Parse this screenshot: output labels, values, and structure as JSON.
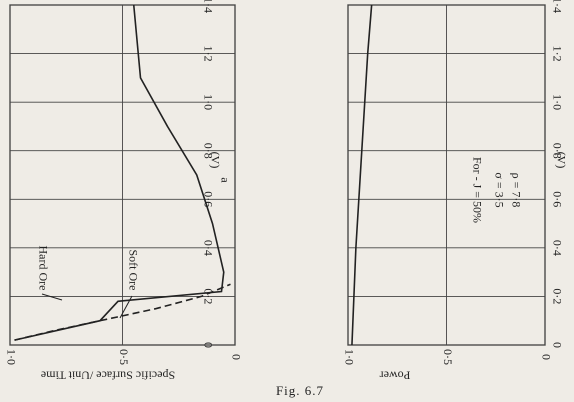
{
  "chart_data": [
    {
      "type": "line",
      "x_label": "(V)",
      "y_label": "Specific Surface /Unit Time",
      "annotations": [
        "a"
      ],
      "xlim": [
        0,
        1.4
      ],
      "xticks": [
        0,
        {
          "value": 0.2,
          "label": "0·2"
        },
        {
          "value": 0.4,
          "label": "0·4"
        },
        {
          "value": 0.6,
          "label": "0·6"
        },
        {
          "value": 0.8,
          "label": "0·8"
        },
        {
          "value": 1.0,
          "label": "1·0"
        },
        {
          "value": 1.2,
          "label": "1·2"
        },
        {
          "value": 1.4,
          "label": "1·4"
        }
      ],
      "ylim": [
        0,
        1.0
      ],
      "yticks": [
        {
          "value": 1.0,
          "label": "1·0"
        },
        {
          "value": 0.5,
          "label": "0·5"
        },
        0
      ],
      "grid": true,
      "x": [
        0.02,
        0.1,
        0.18,
        0.22,
        0.3,
        0.5,
        0.7,
        0.9,
        1.1,
        1.4
      ],
      "series": [
        {
          "name": "Hard Ore",
          "color": "#222222",
          "dash": true,
          "x": [
            0.02,
            0.06,
            0.1,
            0.15,
            0.2,
            0.25
          ],
          "values": [
            0.98,
            0.8,
            0.6,
            0.35,
            0.15,
            0.02
          ]
        },
        {
          "name": "Soft Ore",
          "color": "#222222",
          "dash": false,
          "x": [
            0.02,
            0.1,
            0.18,
            0.22,
            0.3,
            0.5,
            0.7,
            0.9,
            1.1,
            1.4
          ],
          "values": [
            0.98,
            0.6,
            0.52,
            0.06,
            0.05,
            0.1,
            0.17,
            0.3,
            0.42,
            0.45
          ]
        }
      ]
    },
    {
      "type": "line",
      "x_label": "(V)",
      "y_label": "Power",
      "annotations": [
        "For - J = 50%",
        "σ = 3·5",
        "ρ = 7·8"
      ],
      "xlim": [
        0,
        1.4
      ],
      "xticks": [
        0,
        {
          "value": 0.2,
          "label": "0·2"
        },
        {
          "value": 0.4,
          "label": "0·4"
        },
        {
          "value": 0.6,
          "label": "0·6"
        },
        {
          "value": 0.8,
          "label": "0·8"
        },
        {
          "value": 1.0,
          "label": "1·0"
        },
        {
          "value": 1.2,
          "label": "1·2"
        },
        {
          "value": 1.4,
          "label": "1·4"
        }
      ],
      "ylim": [
        0,
        1.0
      ],
      "yticks": [
        {
          "value": 1.0,
          "label": "1·0"
        },
        {
          "value": 0.5,
          "label": "0·5"
        },
        0
      ],
      "grid": true,
      "series": [
        {
          "color": "#222222",
          "dash": false,
          "x": [
            0,
            0.4,
            0.8,
            1.2,
            1.4
          ],
          "values": [
            0.98,
            0.96,
            0.93,
            0.9,
            0.88
          ]
        }
      ]
    }
  ],
  "caption": "Fig. 6.7"
}
